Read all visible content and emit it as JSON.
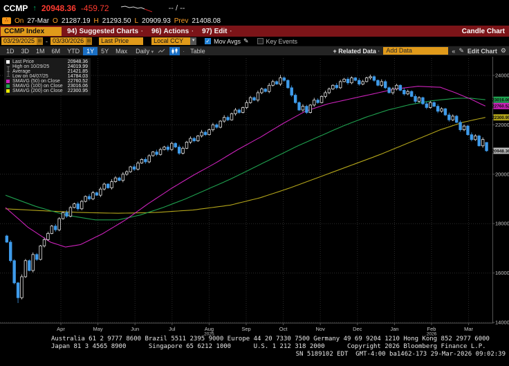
{
  "header": {
    "ticker": "CCMP",
    "arrow": "↑",
    "last": "20948.36",
    "change": "-459.72",
    "bid_ask": "-- / --"
  },
  "ohlc": {
    "on_label": "On",
    "date": "27-Mar",
    "o_label": "O",
    "open": "21287.19",
    "h_label": "H",
    "high": "21293.50",
    "l_label": "L",
    "low": "20909.93",
    "prev_label": "Prev",
    "prev": "21408.08",
    "alert_icon": "∴"
  },
  "menu": {
    "security": "CCMP Index",
    "items": [
      {
        "num": "94)",
        "label": "Suggested Charts",
        "caret": "·"
      },
      {
        "num": "96)",
        "label": "Actions",
        "caret": "·"
      },
      {
        "num": "97)",
        "label": "Edit",
        "caret": "·"
      }
    ],
    "right_title": "Candle Chart"
  },
  "controls": {
    "date_from": "03/29/2025",
    "date_separator": "-",
    "date_to": "03/30/2026",
    "calendar_icon": "⊞",
    "field": "Last Price",
    "currency": "Local CCY",
    "dropdown_icon": "▾",
    "mov_avgs": "Mov Avgs",
    "check_mark": "✓",
    "pencil_icon": "✎",
    "key_events": "Key Events"
  },
  "toolbar": {
    "periods": [
      "1D",
      "3D",
      "1M",
      "6M",
      "YTD",
      "1Y",
      "5Y",
      "Max"
    ],
    "active_period": "1Y",
    "frequency": "Daily",
    "freq_caret": "▾",
    "type_separator": "·",
    "table": "Table",
    "related": "+ Related Data",
    "related_caret": "·",
    "add_data": "Add Data",
    "collapse": "«",
    "pencil_icon": "✎",
    "edit_chart": "Edit Chart",
    "gear_icon": "⚙"
  },
  "legend": {
    "rows": [
      {
        "marker": "last",
        "label": "Last Price",
        "value": "20948.36"
      },
      {
        "marker": "high",
        "label": "High on 10/29/25",
        "value": "24019.99"
      },
      {
        "marker": "avg",
        "label": "Average",
        "value": "21421.85"
      },
      {
        "marker": "low",
        "label": "Low on 04/07/25",
        "value": "14784.03"
      },
      {
        "marker": "ma50",
        "label": "SMAVG (50)  on Close",
        "value": "22760.52"
      },
      {
        "marker": "ma100",
        "label": "SMAVG (100)  on Close",
        "value": "23016.06"
      },
      {
        "marker": "ma200",
        "label": "SMAVG (200)  on Close",
        "value": "22300.95"
      }
    ]
  },
  "chart_data": {
    "type": "candlestick",
    "title": "CCMP Index 1Y Daily Candle Chart",
    "x_months": [
      "Apr",
      "May",
      "Jun",
      "Jul",
      "Aug",
      "Sep",
      "Oct",
      "Nov",
      "Dec",
      "Jan",
      "Feb",
      "Mar"
    ],
    "x_year_labels": [
      "",
      "",
      "",
      "",
      "2025",
      "",
      "",
      "",
      "",
      "",
      "2026",
      ""
    ],
    "y_ticks": [
      24000,
      22000,
      20000,
      18000,
      16000,
      14000
    ],
    "ylim": [
      14000,
      24450
    ],
    "grid": true,
    "first_open": 17500,
    "closes": [
      17250,
      16500,
      15600,
      15000,
      15850,
      16500,
      16100,
      16750,
      16550,
      17100,
      17350,
      17600,
      17900,
      17750,
      18200,
      18450,
      18300,
      18650,
      18800,
      18600,
      18900,
      19100,
      19000,
      19250,
      19150,
      19400,
      19600,
      19450,
      19700,
      19850,
      19750,
      20000,
      20100,
      20300,
      20200,
      20450,
      20600,
      20500,
      20750,
      20900,
      20800,
      21000,
      21100,
      21000,
      21250,
      21100,
      20850,
      21050,
      21300,
      21450,
      21350,
      21550,
      21700,
      21600,
      21800,
      22000,
      21900,
      22150,
      22300,
      22200,
      22450,
      22600,
      22500,
      22700,
      22900,
      23100,
      23000,
      23300,
      23450,
      23350,
      23600,
      23750,
      23650,
      23900,
      23800,
      23500,
      23200,
      22900,
      22600,
      22750,
      22500,
      22800,
      23000,
      22900,
      23150,
      23300,
      23450,
      23600,
      23500,
      23750,
      23850,
      23700,
      23900,
      23800,
      23650,
      23750,
      23900,
      23950,
      23800,
      23600,
      23750,
      23500,
      23300,
      23450,
      23600,
      23400,
      23250,
      23350,
      23150,
      22950,
      23100,
      22850,
      22700,
      22900,
      22750,
      22550,
      22650,
      22400,
      22200,
      22350,
      22100,
      21800,
      21950,
      21600,
      21400,
      21550,
      21150,
      21408,
      20948
    ],
    "key_points": {
      "high": {
        "date": "10/29/25",
        "value": 24019.99,
        "index": 73
      },
      "low": {
        "date": "04/07/25",
        "value": 14784.03,
        "index": 3
      },
      "average": 21421.85,
      "last": {
        "date": "27-Mar",
        "open": 21287.19,
        "high": 21293.5,
        "low": 20909.93,
        "close": 20948.36,
        "prev": 21408.08
      }
    },
    "moving_averages": [
      {
        "name": "SMAVG (200) on Close",
        "value": 22300.95,
        "color": "#b3a51a",
        "points": [
          [
            0,
            18600
          ],
          [
            10,
            18520
          ],
          [
            20,
            18450
          ],
          [
            30,
            18420
          ],
          [
            40,
            18450
          ],
          [
            50,
            18550
          ],
          [
            60,
            18750
          ],
          [
            68,
            19050
          ],
          [
            76,
            19450
          ],
          [
            84,
            19900
          ],
          [
            92,
            20350
          ],
          [
            100,
            20800
          ],
          [
            108,
            21300
          ],
          [
            116,
            21800
          ],
          [
            122,
            22100
          ],
          [
            128,
            22301
          ]
        ]
      },
      {
        "name": "SMAVG (100) on Close",
        "value": 23016.06,
        "color": "#1fa14f",
        "points": [
          [
            0,
            19150
          ],
          [
            8,
            18700
          ],
          [
            16,
            18350
          ],
          [
            24,
            18150
          ],
          [
            30,
            18150
          ],
          [
            36,
            18350
          ],
          [
            42,
            18650
          ],
          [
            48,
            19000
          ],
          [
            54,
            19400
          ],
          [
            60,
            19800
          ],
          [
            66,
            20250
          ],
          [
            72,
            20700
          ],
          [
            78,
            21150
          ],
          [
            84,
            21550
          ],
          [
            90,
            21950
          ],
          [
            96,
            22300
          ],
          [
            102,
            22600
          ],
          [
            108,
            22820
          ],
          [
            114,
            22980
          ],
          [
            120,
            23070
          ],
          [
            124,
            23080
          ],
          [
            128,
            23016
          ]
        ]
      },
      {
        "name": "SMAVG (50) on Close",
        "value": 22760.52,
        "color": "#cc22bb",
        "points": [
          [
            0,
            18650
          ],
          [
            6,
            17850
          ],
          [
            12,
            17250
          ],
          [
            16,
            17050
          ],
          [
            20,
            17150
          ],
          [
            26,
            17600
          ],
          [
            32,
            18150
          ],
          [
            38,
            18800
          ],
          [
            44,
            19400
          ],
          [
            50,
            19950
          ],
          [
            56,
            20450
          ],
          [
            62,
            21000
          ],
          [
            68,
            21500
          ],
          [
            74,
            22050
          ],
          [
            80,
            22550
          ],
          [
            86,
            22850
          ],
          [
            92,
            23050
          ],
          [
            98,
            23250
          ],
          [
            104,
            23450
          ],
          [
            110,
            23560
          ],
          [
            116,
            23520
          ],
          [
            120,
            23300
          ],
          [
            124,
            23050
          ],
          [
            128,
            22760
          ]
        ]
      }
    ],
    "colors": {
      "up": "#e8e8e8",
      "down": "#3e9bea",
      "grid": "#2c2c2c",
      "axis": "#555555"
    },
    "axis_badges": [
      {
        "value": "23016.06",
        "bg": "#1fa14f",
        "price": 23016.06
      },
      {
        "value": "22760.52",
        "bg": "#cc22bb",
        "price": 22760.52
      },
      {
        "value": "22300.95",
        "bg": "#b3a51a",
        "price": 22300.95
      },
      {
        "value": "20948.36",
        "bg": "#b8b8b8",
        "price": 20948.36
      }
    ]
  },
  "footer": {
    "line1": "Australia 61 2 9777 8600 Brazil 5511 2395 9000 Europe 44 20 7330 7500 Germany 49 69 9204 1210 Hong Kong 852 2977 6000",
    "line2": "Japan 81 3 4565 8900      Singapore 65 6212 1000      U.S. 1 212 318 2000      Copyright 2026 Bloomberg Finance L.P.",
    "line3": "SN 5189102 EDT  GMT-4:00 ba1462-173 29-Mar-2026 09:02:39"
  }
}
